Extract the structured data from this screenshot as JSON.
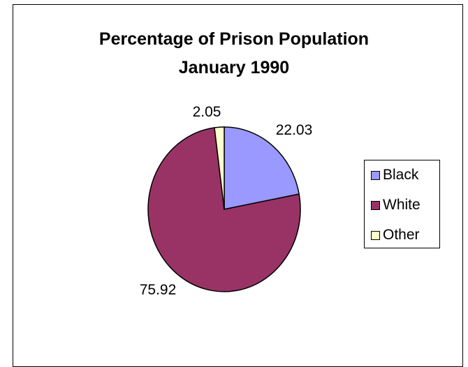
{
  "chart_data": {
    "type": "pie",
    "title_lines": [
      "Percentage of Prison Population",
      "January 1990"
    ],
    "categories": [
      "Black",
      "White",
      "Other"
    ],
    "values": [
      22.03,
      75.92,
      2.05
    ],
    "data_labels": [
      "22.03",
      "75.92",
      "2.05"
    ],
    "colors": [
      "#9999ff",
      "#993366",
      "#ffffcc"
    ],
    "legend_position": "right",
    "start_angle_degrees": 0,
    "direction": "clockwise"
  }
}
